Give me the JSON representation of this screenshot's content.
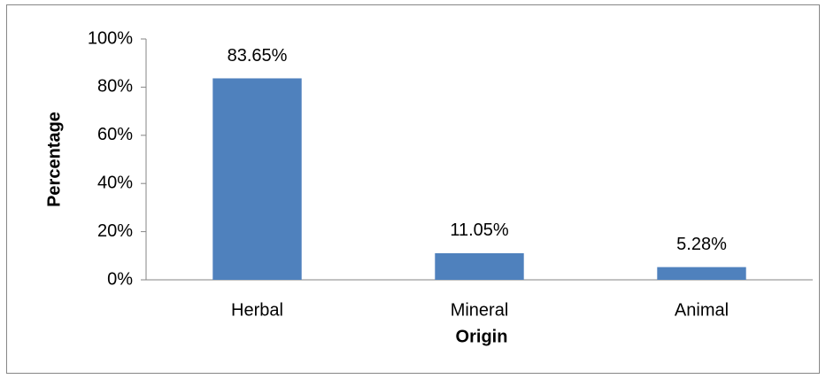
{
  "chart_data": {
    "type": "bar",
    "categories": [
      "Herbal",
      "Mineral",
      "Animal"
    ],
    "values": [
      83.65,
      11.05,
      5.28
    ],
    "value_labels": [
      "83.65%",
      "11.05%",
      "5.28%"
    ],
    "color": "#4f81bd",
    "xlabel": "Origin",
    "ylabel": "Percentage",
    "ylim": [
      0,
      100
    ],
    "yticks": [
      {
        "value": 0,
        "label": "0%"
      },
      {
        "value": 20,
        "label": "20%"
      },
      {
        "value": 40,
        "label": "40%"
      },
      {
        "value": 60,
        "label": "60%"
      },
      {
        "value": 80,
        "label": "80%"
      },
      {
        "value": 100,
        "label": "100%"
      }
    ],
    "grid": false
  }
}
